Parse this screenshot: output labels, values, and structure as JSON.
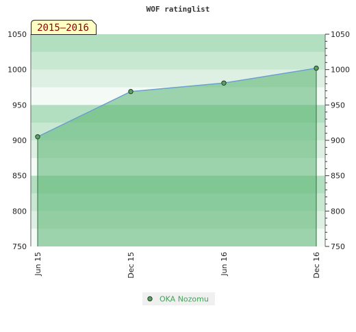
{
  "chart_data": {
    "type": "area",
    "title": "WOF ratinglist",
    "period_label": "2015–2016",
    "x_categories": [
      "Jun 15",
      "Dec 15",
      "Jun 16",
      "Dec 16"
    ],
    "series": [
      {
        "name": "OKA Nozomu",
        "points": [
          {
            "x": "Jun 15",
            "y": 905
          },
          {
            "x": "Dec 15",
            "y": 969
          },
          {
            "x": "Jun 16",
            "y": 981
          },
          {
            "x": "Dec 16",
            "y": 1002
          }
        ]
      }
    ],
    "ylim": [
      750,
      1050
    ],
    "y_ticks_left": [
      750,
      800,
      850,
      900,
      950,
      1000,
      1050
    ],
    "y_ticks_right": [
      750,
      800,
      850,
      900,
      950,
      1000,
      1050
    ],
    "legend_position": "bottom-center",
    "grid": true
  },
  "colors": {
    "line": "#6a9fd0",
    "marker_fill": "#5aa068",
    "area_fill": "#55b270",
    "legend_text": "#3aa655",
    "period_bg": "#ffffc4",
    "period_text": "#8b0000"
  }
}
